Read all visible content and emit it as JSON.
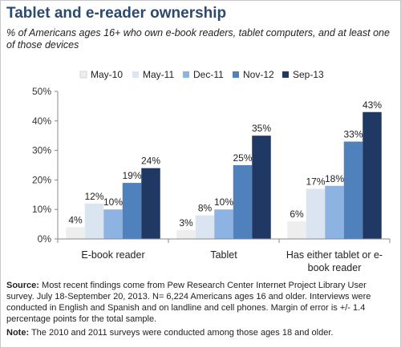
{
  "header": {
    "title": "Tablet and e-reader ownership",
    "subtitle": "% of Americans ages 16+ who own e-book readers, tablet computers, and at least one of those devices"
  },
  "chart_data": {
    "type": "bar",
    "categories": [
      [
        "E-book reader"
      ],
      [
        "Tablet"
      ],
      [
        "Has either tablet or e-",
        "book reader"
      ]
    ],
    "series": [
      {
        "name": "May-10",
        "color": "#eeeeee",
        "values": [
          4,
          3,
          6
        ]
      },
      {
        "name": "May-11",
        "color": "#dbe5f1",
        "values": [
          12,
          8,
          17
        ]
      },
      {
        "name": "Dec-11",
        "color": "#8db3e2",
        "values": [
          10,
          10,
          18
        ]
      },
      {
        "name": "Nov-12",
        "color": "#4f81bd",
        "values": [
          19,
          25,
          33
        ]
      },
      {
        "name": "Sep-13",
        "color": "#1f3864",
        "values": [
          24,
          35,
          43
        ]
      }
    ],
    "yticks": [
      "0%",
      "10%",
      "20%",
      "30%",
      "40%",
      "50%"
    ],
    "ylim": [
      0,
      50
    ],
    "value_suffix": "%",
    "legend_position": "top",
    "grid": false
  },
  "footer": {
    "source_label": "Source:",
    "source_text": " Most recent findings come from Pew Research Center Internet Project Library User survey. July 18-September 20, 2013. N= 6,224 Americans ages 16 and older. Interviews were conducted in English and Spanish and on landline and cell phones. Margin of error is +/- 1.4 percentage points for the total sample.",
    "note_label": "Note:",
    "note_text": " The 2010 and 2011 surveys were conducted among those ages 18 and older."
  }
}
